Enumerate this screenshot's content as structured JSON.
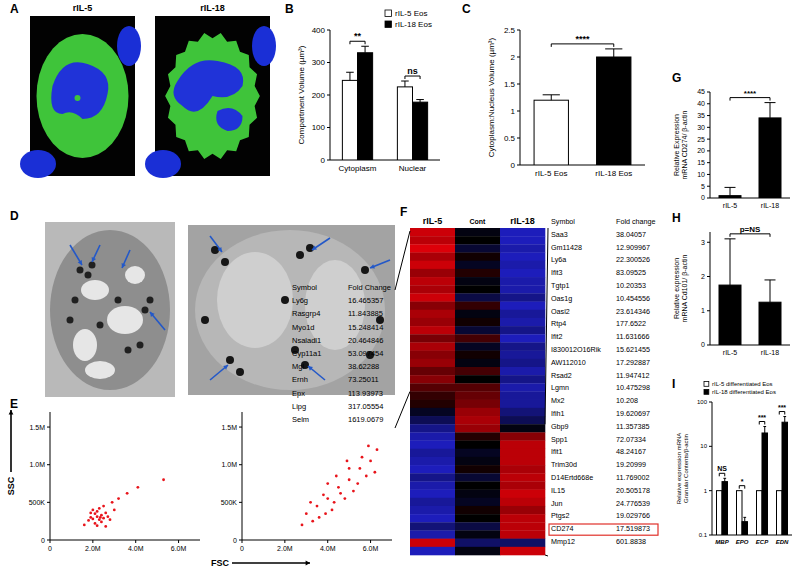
{
  "panel_labels": [
    "A",
    "B",
    "C",
    "D",
    "E",
    "F",
    "G",
    "H",
    "I"
  ],
  "images": {
    "A": [
      "rIL-5",
      "rIL-18"
    ]
  },
  "chart_data": [
    {
      "type": "bar",
      "categories": [
        "Cytoplasm",
        "Nuclear"
      ],
      "y_label": "Compartment Volume (µm³)",
      "ylim": [
        0,
        400
      ],
      "yticks": [
        0,
        100,
        200,
        300,
        400
      ],
      "legend": "upper right",
      "series": [
        {
          "name": "rIL-5 Eos",
          "color": "#ffffff",
          "values": [
            245,
            225
          ],
          "errors": [
            25,
            18
          ]
        },
        {
          "name": "rIL-18 Eos",
          "color": "#000000",
          "values": [
            330,
            178
          ],
          "errors": [
            20,
            8
          ]
        }
      ],
      "annotations": [
        {
          "text": "**",
          "categories": [
            0
          ]
        },
        {
          "text": "ns",
          "categories": [
            1
          ]
        }
      ]
    },
    {
      "type": "bar",
      "categories": [
        "rIL-5 Eos",
        "rIL-18 Eos"
      ],
      "y_label": "Cytoplasm:Nucleus Volume (µm³)",
      "ylim": [
        0,
        2.5
      ],
      "yticks": [
        0,
        0.5,
        1,
        1.5,
        2,
        2.5
      ],
      "series": [
        {
          "colors": [
            "#ffffff",
            "#000000"
          ],
          "values": [
            1.2,
            2.0
          ],
          "errors": [
            0.1,
            0.15
          ]
        }
      ],
      "annotations": [
        {
          "text": "****",
          "categories": [
            0,
            1
          ]
        }
      ]
    },
    {
      "type": "scatter",
      "y_label": "SSC",
      "x_label": "FSC",
      "xlim": [
        0,
        7000000
      ],
      "ylim": [
        0,
        1700000
      ],
      "color": "#e8141b",
      "xticks": [
        0,
        {
          "value": 2000000,
          "label": "2.0M"
        },
        {
          "value": 4000000,
          "label": "4.0M"
        },
        {
          "value": 6000000,
          "label": "6.0M"
        }
      ],
      "yticks": [
        0,
        {
          "value": 500000,
          "label": "500K"
        },
        {
          "value": 1000000,
          "label": "1.0M"
        },
        {
          "value": 1500000,
          "label": "1.5M"
        }
      ],
      "x": [
        1900000,
        2000000,
        2100000,
        2200000,
        2300000,
        2200000,
        2400000,
        2500000,
        2100000,
        2300000,
        2600000,
        1800000,
        2000000,
        2400000,
        2200000,
        2700000,
        2500000,
        1900000,
        2800000,
        2350000,
        3200000,
        3600000,
        1600000,
        4100000,
        3000000,
        2900000,
        5300000,
        2600000
      ],
      "values": [
        300000,
        280000,
        350000,
        310000,
        270000,
        380000,
        330000,
        290000,
        220000,
        420000,
        360000,
        260000,
        400000,
        240000,
        190000,
        310000,
        450000,
        360000,
        270000,
        300000,
        550000,
        620000,
        200000,
        700000,
        400000,
        500000,
        800000,
        180000
      ]
    },
    {
      "type": "scatter",
      "xlim": [
        0,
        7000000
      ],
      "ylim": [
        0,
        1700000
      ],
      "color": "#e8141b",
      "xticks": [
        0,
        {
          "value": 2000000,
          "label": "2.0M"
        },
        {
          "value": 4000000,
          "label": "4.0M"
        },
        {
          "value": 6000000,
          "label": "6.0M"
        }
      ],
      "yticks": [
        0,
        {
          "value": 500000,
          "label": "500K"
        },
        {
          "value": 1000000,
          "label": "1.0M"
        },
        {
          "value": 1500000,
          "label": "1.5M"
        }
      ],
      "x": [
        3000000,
        3500000,
        4000000,
        4500000,
        5000000,
        5500000,
        6000000,
        4200000,
        3800000,
        4800000,
        5200000,
        5800000,
        3300000,
        4400000,
        5600000,
        6300000,
        2800000,
        3600000,
        4600000,
        5000000,
        5400000,
        4000000,
        3200000,
        6200000,
        4900000,
        3900000,
        5900000,
        4300000
      ],
      "values": [
        350000,
        450000,
        550000,
        700000,
        800000,
        950000,
        1050000,
        400000,
        600000,
        550000,
        650000,
        850000,
        250000,
        850000,
        1100000,
        1200000,
        200000,
        300000,
        620000,
        950000,
        750000,
        750000,
        500000,
        900000,
        1050000,
        350000,
        1250000,
        500000
      ]
    },
    {
      "type": "heatmap",
      "columns": [
        "rIL-5",
        "Cont",
        "rIL-18"
      ],
      "zlim": [
        -1.5,
        1.5
      ],
      "cells": [
        [
          1.2,
          -0.1,
          -1.1
        ],
        [
          1.1,
          0.0,
          -1.1
        ],
        [
          1.3,
          -0.3,
          -1.0
        ],
        [
          1.0,
          0.1,
          -1.1
        ],
        [
          1.2,
          -0.2,
          -1.0
        ],
        [
          0.9,
          0.2,
          -1.1
        ],
        [
          1.1,
          -0.1,
          -1.0
        ],
        [
          1.0,
          0.0,
          -1.0
        ],
        [
          1.2,
          -0.4,
          -0.8
        ],
        [
          0.8,
          0.3,
          -1.1
        ],
        [
          1.0,
          -0.1,
          -0.9
        ],
        [
          0.9,
          0.1,
          -1.0
        ],
        [
          1.1,
          -0.3,
          -0.8
        ],
        [
          0.7,
          0.4,
          -1.1
        ],
        [
          1.0,
          -0.2,
          -0.8
        ],
        [
          0.8,
          0.1,
          -0.9
        ],
        [
          0.9,
          -0.1,
          -0.8
        ],
        [
          0.6,
          0.4,
          -1.0
        ],
        [
          0.8,
          0.0,
          -0.8
        ],
        [
          0.5,
          0.5,
          -1.0
        ],
        [
          0.3,
          0.6,
          -0.9
        ],
        [
          0.2,
          0.7,
          -0.9
        ],
        [
          -0.2,
          0.9,
          -0.7
        ],
        [
          -0.5,
          1.0,
          -0.5
        ],
        [
          -0.8,
          0.9,
          -0.1
        ],
        [
          -1.0,
          0.2,
          0.8
        ],
        [
          -1.1,
          0.0,
          1.1
        ],
        [
          -0.9,
          -0.2,
          1.1
        ],
        [
          -1.0,
          -0.1,
          1.1
        ],
        [
          -1.1,
          0.1,
          1.0
        ],
        [
          -0.8,
          -0.3,
          1.1
        ],
        [
          -1.0,
          0.0,
          1.0
        ],
        [
          -1.1,
          -0.1,
          1.2
        ],
        [
          -0.9,
          -0.2,
          1.1
        ],
        [
          -1.0,
          0.1,
          0.9
        ],
        [
          -1.1,
          0.0,
          1.1
        ],
        [
          -0.7,
          -0.4,
          1.1
        ],
        [
          -1.0,
          -0.1,
          1.1
        ],
        [
          1.2,
          -0.6,
          -0.6
        ],
        [
          -1.1,
          -0.1,
          1.2
        ]
      ]
    },
    {
      "type": "bar",
      "categories": [
        "rIL-5",
        "rIL-18"
      ],
      "y_label": "Relative Expression mRNA CD274/ β-actin",
      "ylim": [
        0,
        45
      ],
      "yticks": [
        0,
        5,
        10,
        15,
        20,
        25,
        30,
        35,
        40,
        45
      ],
      "series": [
        {
          "color": "#000000",
          "values": [
            1,
            34
          ],
          "errors": [
            3.5,
            6.5
          ]
        }
      ],
      "annotations": [
        {
          "text": "****",
          "categories": [
            0,
            1
          ]
        }
      ]
    },
    {
      "type": "bar",
      "categories": [
        "rIL-5",
        "rIL-18"
      ],
      "y_label": "Relative expression mRNA Cd101/ β-actin",
      "ylim": [
        0,
        3.3
      ],
      "yticks": [
        0,
        1,
        2,
        3
      ],
      "series": [
        {
          "color": "#000000",
          "values": [
            1.75,
            1.25
          ],
          "errors": [
            1.35,
            0.65
          ]
        }
      ],
      "annotations": [
        {
          "text": "p=NS",
          "categories": [
            0,
            1
          ]
        }
      ]
    },
    {
      "type": "bar",
      "categories": [
        "MBP",
        "EPO",
        "ECP",
        "EDN"
      ],
      "y_label": "Relative expression mRNA Granular Contents/β-actin",
      "log": "y",
      "ylim": [
        0.1,
        100
      ],
      "yticks": [
        0.1,
        1,
        10,
        100
      ],
      "legend": "top",
      "series": [
        {
          "name": "rIL-5 differentiated Eos",
          "color": "#ffffff",
          "values": [
            1,
            1,
            1,
            1
          ]
        },
        {
          "name": "rIL-18 differentiated Eos",
          "color": "#000000",
          "values": [
            1.6,
            0.2,
            20,
            35
          ],
          "errors": [
            0.3,
            0.05,
            8,
            12
          ]
        }
      ],
      "annotations": [
        {
          "text": "NS",
          "categories": [
            0
          ]
        },
        {
          "text": "*",
          "categories": [
            1
          ]
        },
        {
          "text": "***",
          "categories": [
            2
          ]
        },
        {
          "text": "***",
          "categories": [
            3
          ]
        }
      ]
    }
  ],
  "tables": {
    "left": {
      "header": [
        "Symbol",
        "Fold Change"
      ],
      "rows": [
        [
          "Ly6g",
          "16.465357"
        ],
        [
          "Rasgrp4",
          "11.843885"
        ],
        [
          "Myo1d",
          "15.248414"
        ],
        [
          "Nsaladl1",
          "20.464846"
        ],
        [
          "Cyp11a1",
          "53.097454"
        ],
        [
          "Mgl",
          "38.62288"
        ],
        [
          "Ernh",
          "73.25011"
        ],
        [
          "Epx",
          "113.93973"
        ],
        [
          "Lipg",
          "317.05554"
        ],
        [
          "Selm",
          "1619.0679"
        ]
      ]
    },
    "right": {
      "header": [
        "Symbol",
        "Fold change"
      ],
      "highlight": "CD274",
      "rows": [
        [
          "Saa3",
          "38.04057"
        ],
        [
          "Gm11428",
          "12.909967"
        ],
        [
          "Ly6a",
          "22.300526"
        ],
        [
          "Ifit3",
          "83.09525"
        ],
        [
          "Tgtp1",
          "10.20353"
        ],
        [
          "Oas1g",
          "10.454556"
        ],
        [
          "Oasl2",
          "23.614346"
        ],
        [
          "Rtp4",
          "177.6522"
        ],
        [
          "Ifit2",
          "11.631666"
        ],
        [
          "I830012O16Rik",
          "15.621455"
        ],
        [
          "AW112010",
          "17.292887"
        ],
        [
          "Rsad2",
          "11.947412"
        ],
        [
          "Lgmn",
          "10.475298"
        ],
        [
          "Mx2",
          "10.208"
        ],
        [
          "Ifih1",
          "19.620697"
        ],
        [
          "Gbp9",
          "11.357385"
        ],
        [
          "Spp1",
          "72.07334"
        ],
        [
          "Ifit1",
          "48.24167"
        ],
        [
          "Trim30d",
          "19.20999"
        ],
        [
          "D14Ertd668e",
          "11.769002"
        ],
        [
          "IL15",
          "20.505178"
        ],
        [
          "Jun",
          "24.776539"
        ],
        [
          "Ptgs2",
          "19.029766"
        ],
        [
          "CD274",
          "17.519873"
        ],
        [
          "Mmp12",
          "601.8838"
        ]
      ]
    }
  }
}
